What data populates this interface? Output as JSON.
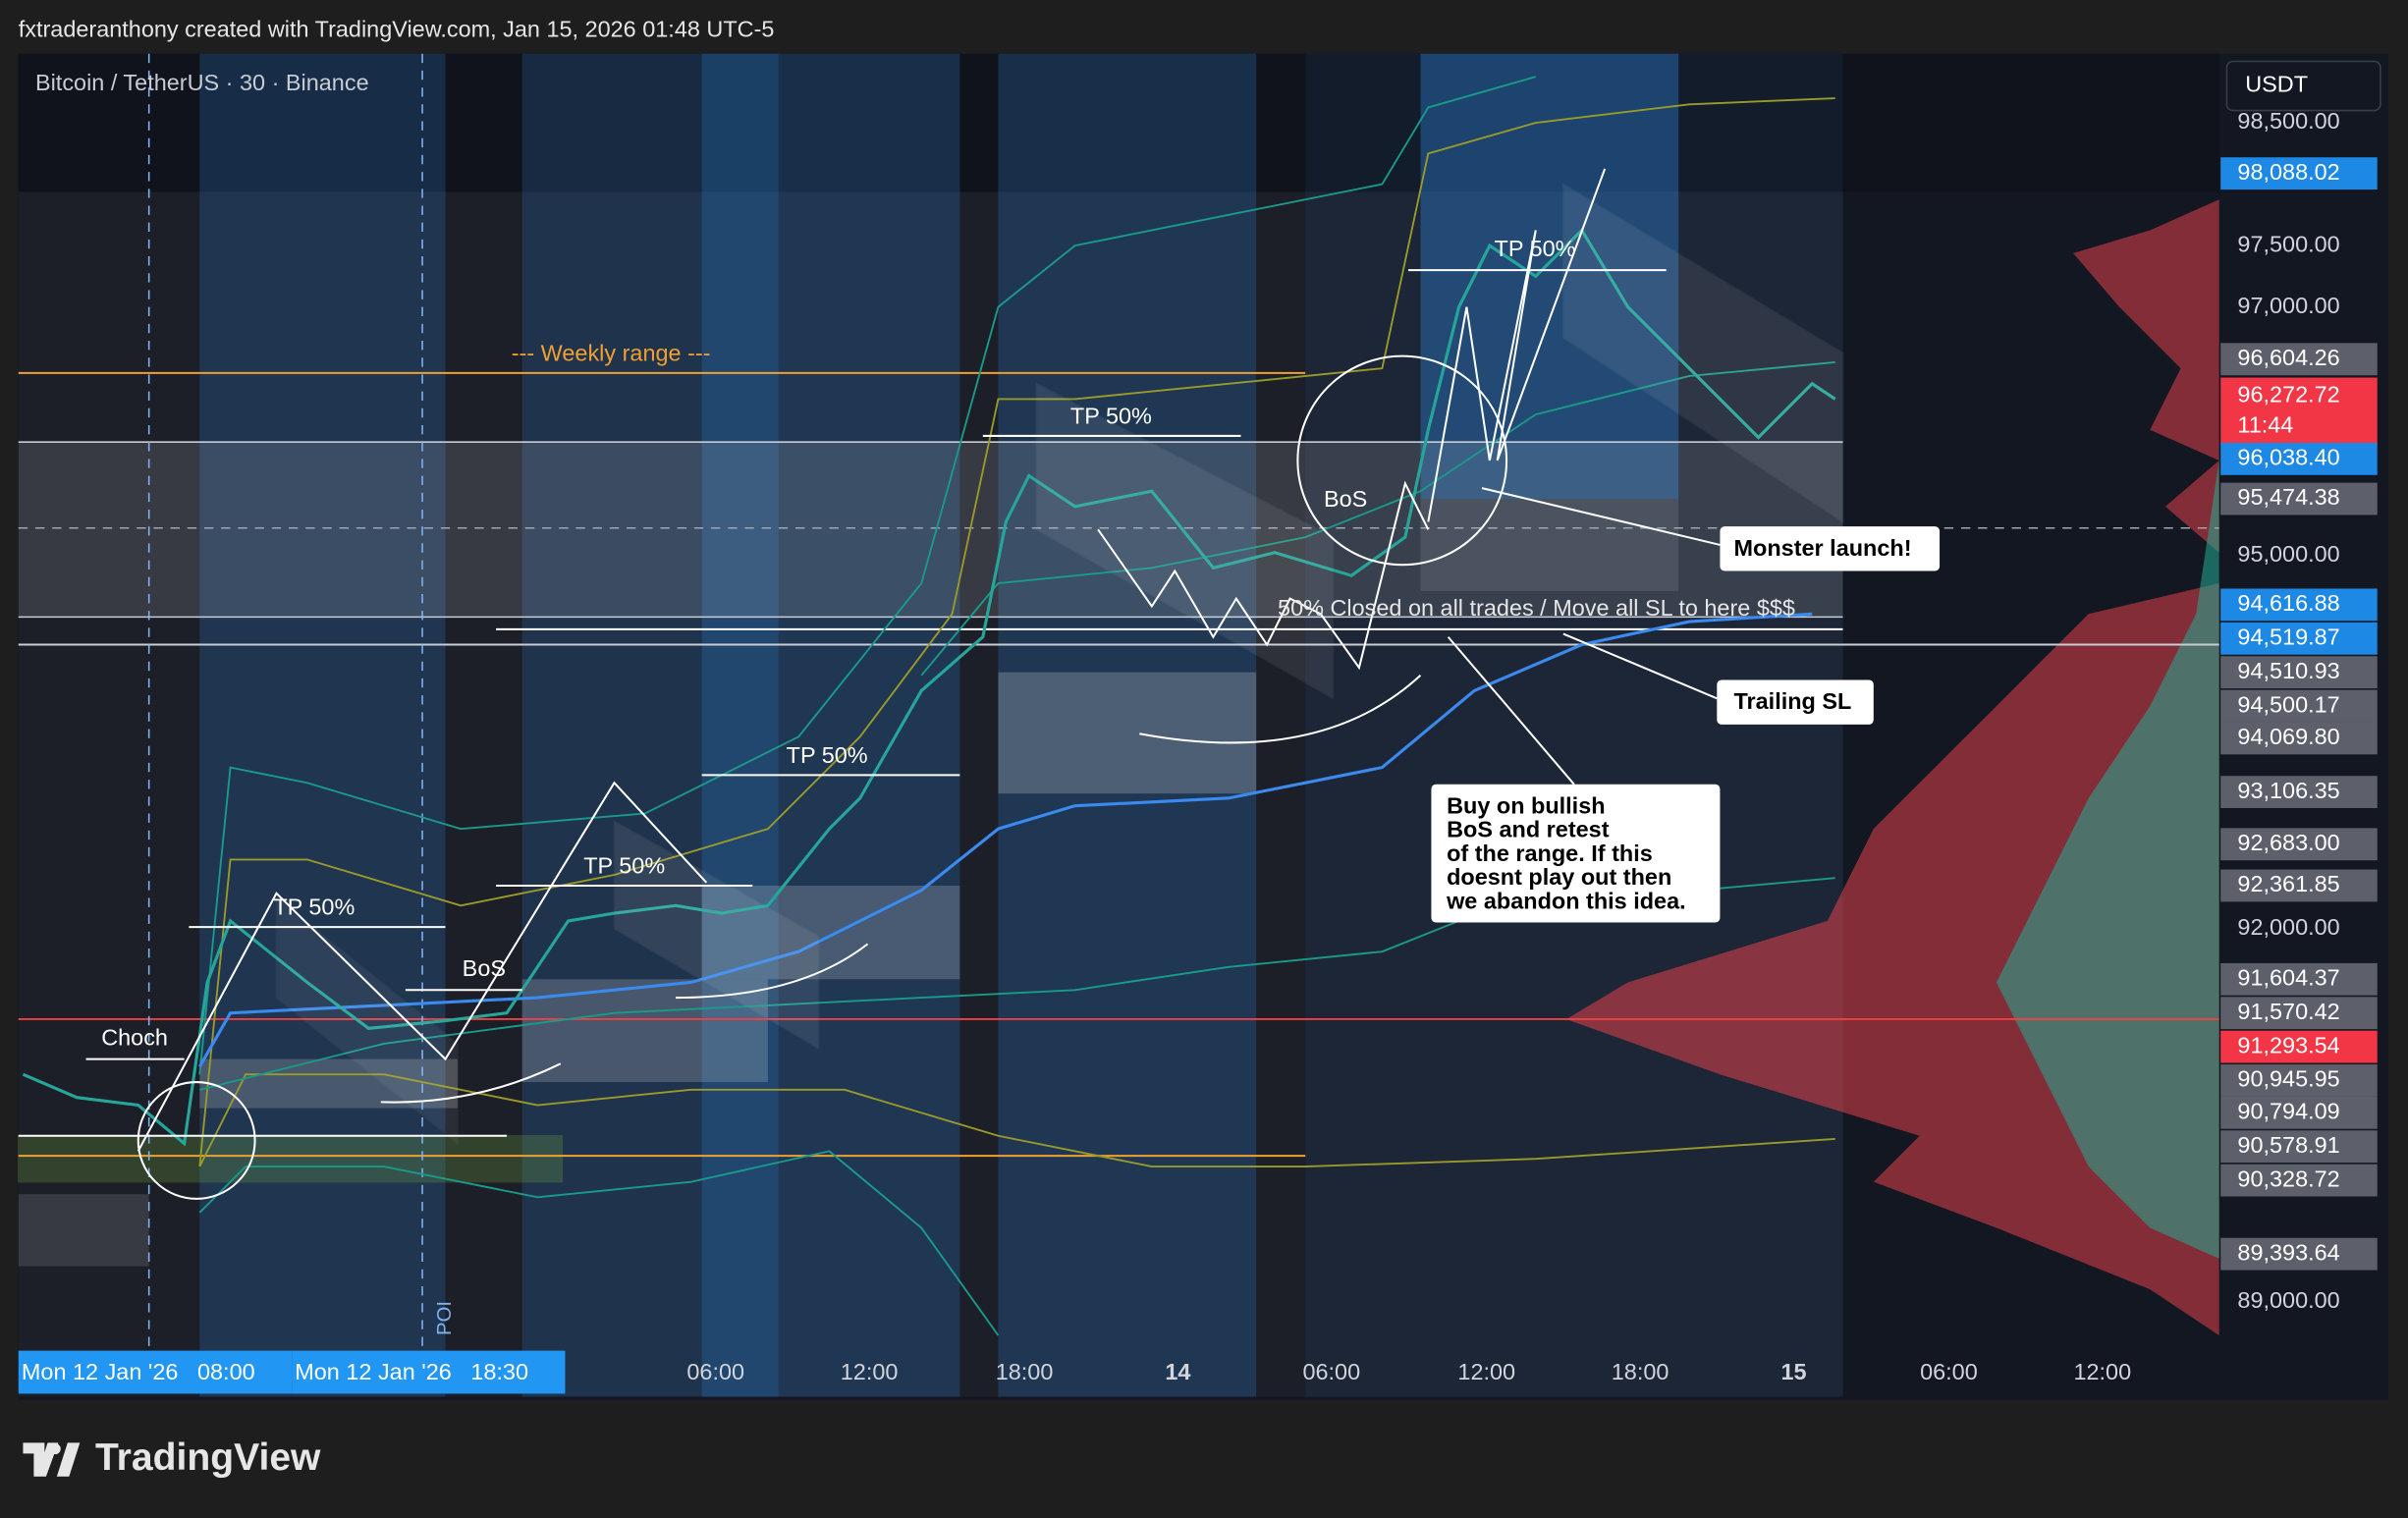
{
  "header": {
    "byline": "fxtraderanthony created with TradingView.com, Jan 15, 2026 01:48 UTC-5"
  },
  "symbol": "Bitcoin / TetherUS · 30 · Binance",
  "currency": "USDT",
  "price_axis": [
    {
      "text": "98,500.00",
      "tag": "plain"
    },
    {
      "text": "98,088.02",
      "tag": "blue"
    },
    {
      "text": "97,500.00",
      "tag": "plain"
    },
    {
      "text": "97,000.00",
      "tag": "plain"
    },
    {
      "text": "96,604.26",
      "tag": "grey"
    },
    {
      "text": "96,272.72",
      "sub": "11:44",
      "tag": "red"
    },
    {
      "text": "96,038.40",
      "tag": "blue"
    },
    {
      "text": "95,474.38",
      "tag": "grey"
    },
    {
      "text": "95,000.00",
      "tag": "plain"
    },
    {
      "text": "94,616.88",
      "tag": "blue"
    },
    {
      "text": "94,519.87",
      "tag": "blue"
    },
    {
      "text": "94,510.93",
      "tag": "grey"
    },
    {
      "text": "94,500.17",
      "tag": "grey"
    },
    {
      "text": "94,069.80",
      "tag": "grey"
    },
    {
      "text": "93,106.35",
      "tag": "grey"
    },
    {
      "text": "92,683.00",
      "tag": "grey"
    },
    {
      "text": "92,361.85",
      "tag": "grey"
    },
    {
      "text": "92,000.00",
      "tag": "plain"
    },
    {
      "text": "91,604.37",
      "tag": "grey"
    },
    {
      "text": "91,570.42",
      "tag": "grey"
    },
    {
      "text": "91,293.54",
      "tag": "red"
    },
    {
      "text": "90,945.95",
      "tag": "grey"
    },
    {
      "text": "90,794.09",
      "tag": "grey"
    },
    {
      "text": "90,578.91",
      "tag": "grey"
    },
    {
      "text": "90,328.72",
      "tag": "grey"
    },
    {
      "text": "89,393.64",
      "tag": "grey"
    },
    {
      "text": "89,000.00",
      "tag": "plain"
    }
  ],
  "time_axis": [
    {
      "text": "Mon 12 Jan '26   08:00",
      "tag": "blue"
    },
    {
      "text": "Mon 12 Jan '26   18:30",
      "tag": "blue"
    },
    {
      "text": "06:00",
      "tag": "plain"
    },
    {
      "text": "12:00",
      "tag": "plain"
    },
    {
      "text": "18:00",
      "tag": "plain"
    },
    {
      "text": "14",
      "tag": "bold"
    },
    {
      "text": "06:00",
      "tag": "plain"
    },
    {
      "text": "12:00",
      "tag": "plain"
    },
    {
      "text": "18:00",
      "tag": "plain"
    },
    {
      "text": "15",
      "tag": "bold"
    },
    {
      "text": "06:00",
      "tag": "plain"
    },
    {
      "text": "12:00",
      "tag": "plain"
    }
  ],
  "annotations": {
    "weekly_range": "--- Weekly range ---",
    "tp": [
      "TP 50%",
      "TP 50%",
      "TP 50%",
      "TP 50%",
      "TP 50%"
    ],
    "bos": [
      "BoS",
      "BoS"
    ],
    "choch": "Choch",
    "poi": "POI",
    "closed": "50% Closed on all trades / Move all SL to here $$$",
    "monster": "Monster launch!",
    "trailing": "Trailing SL",
    "idea": [
      "Buy on bullish",
      "BoS and retest",
      "of the range. If this",
      "doesnt play out then",
      "we abandon this idea."
    ]
  },
  "footer": {
    "logo": "TradingView"
  }
}
